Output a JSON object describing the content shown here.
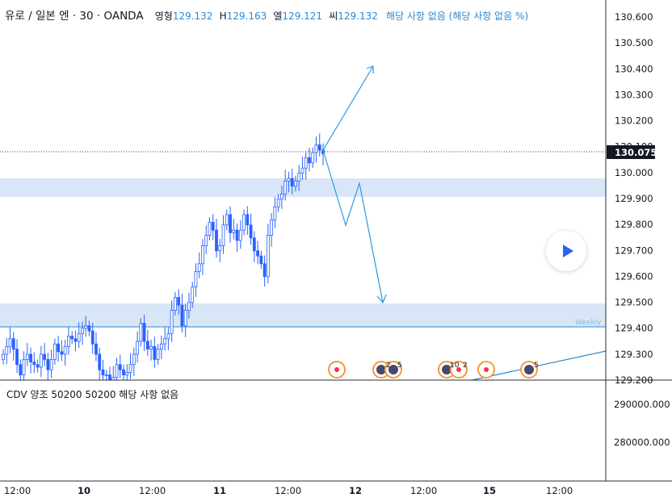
{
  "header": {
    "symbol": "유로 / 일본 엔 · 30 · OANDA",
    "open_label": "영형",
    "open": "129.132",
    "high_label": "H",
    "high": "129.163",
    "low_label": "엘",
    "low": "129.121",
    "close_label": "씨",
    "close": "129.132",
    "change_text": "해당 사항 없음 (해당 사항 없음 %)"
  },
  "price_axis": {
    "ticks": [
      "130.600",
      "130.500",
      "130.400",
      "130.300",
      "130.200",
      "130.100",
      "130.000",
      "129.900",
      "129.800",
      "129.700",
      "129.600",
      "129.500",
      "129.400",
      "129.300",
      "129.200"
    ],
    "current_price": "130.075"
  },
  "indicator": {
    "label": "CDV 양조 50200 50200  해당 사항 없음",
    "ticks": [
      "290000.000",
      "280000.000"
    ]
  },
  "time_axis": {
    "ticks": [
      "12:00",
      "10",
      "12:00",
      "11",
      "12:00",
      "12",
      "12:00",
      "15",
      "12:00"
    ],
    "bold_ticks": [
      "10",
      "11",
      "12",
      "15"
    ]
  },
  "weekly_label": "Weekly",
  "event_badges": [
    "2",
    "5",
    "10",
    "2",
    "5"
  ],
  "colors": {
    "candle": "#2962ff",
    "zone": "#cfe0f5",
    "arrow": "#2e9be0",
    "line": "#2a8ad3",
    "event_ring": "#f59a3a",
    "event_dot": "#f23645",
    "header_value": "#2a8ad3"
  },
  "chart_data": {
    "type": "candlestick",
    "symbol": "EUR/JPY",
    "interval": "30",
    "source": "OANDA",
    "ylim": [
      129.2,
      130.62
    ],
    "current_price": 130.075,
    "ohlc": {
      "open": 129.132,
      "high": 129.163,
      "low": 129.121,
      "close": 129.132
    },
    "zones": [
      {
        "from": 129.905,
        "to": 129.975
      },
      {
        "from": 129.4,
        "to": 129.49
      }
    ],
    "weekly_level": 129.4,
    "close_series": [
      129.3,
      129.33,
      129.36,
      129.32,
      129.26,
      129.22,
      129.28,
      129.3,
      129.27,
      129.26,
      129.25,
      129.3,
      129.28,
      129.24,
      129.28,
      129.34,
      129.31,
      129.3,
      129.33,
      129.37,
      129.36,
      129.35,
      129.38,
      129.4,
      129.41,
      129.39,
      129.34,
      129.3,
      129.24,
      129.22,
      129.22,
      129.2,
      129.21,
      129.26,
      129.24,
      129.22,
      129.23,
      129.26,
      129.3,
      129.35,
      129.42,
      129.35,
      129.32,
      129.33,
      129.28,
      129.32,
      129.34,
      129.36,
      129.38,
      129.47,
      129.52,
      129.49,
      129.41,
      129.47,
      129.5,
      129.56,
      129.62,
      129.65,
      129.72,
      129.76,
      129.81,
      129.78,
      129.7,
      129.72,
      129.8,
      129.84,
      129.77,
      129.78,
      129.74,
      129.78,
      129.84,
      129.8,
      129.75,
      129.7,
      129.68,
      129.65,
      129.6,
      129.76,
      129.82,
      129.87,
      129.9,
      129.92,
      129.97,
      129.98,
      129.95,
      129.97,
      130.0,
      130.02,
      130.06,
      130.04,
      130.08,
      130.11,
      130.09,
      130.075
    ],
    "projection_path": [
      {
        "date_pos": "latest",
        "price": 130.09
      },
      {
        "price": 130.39
      },
      {
        "price": 129.9
      },
      {
        "price": 129.8
      },
      {
        "price": 129.95
      },
      {
        "price": 129.51
      }
    ],
    "indicator_name": "CDV",
    "indicator_ylim": [
      270000,
      300000
    ]
  }
}
